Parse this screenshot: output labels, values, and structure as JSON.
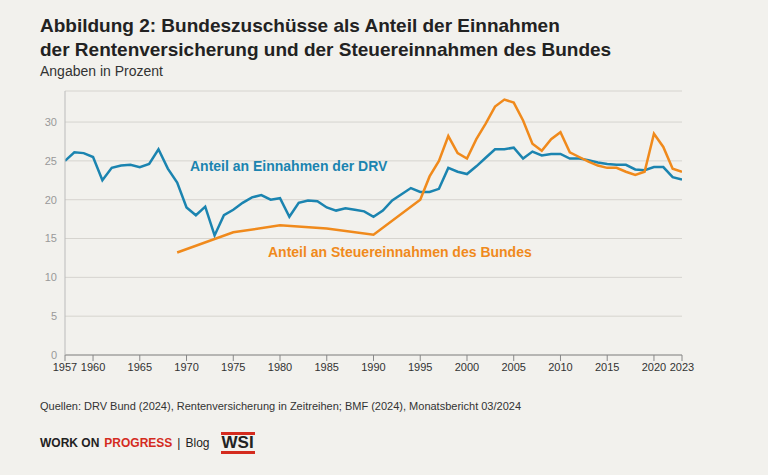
{
  "chart_data": {
    "type": "line",
    "title": [
      "Abbildung 2: Bundeszuschüsse als Anteil der Einnahmen",
      "der Rentenversicherung und der Steuereinnahmen des Bundes"
    ],
    "subtitle": "Angaben in Prozent",
    "x": [
      1957,
      1958,
      1959,
      1960,
      1961,
      1962,
      1963,
      1964,
      1965,
      1966,
      1967,
      1968,
      1969,
      1970,
      1971,
      1972,
      1973,
      1974,
      1975,
      1976,
      1977,
      1978,
      1979,
      1980,
      1981,
      1982,
      1983,
      1984,
      1985,
      1986,
      1987,
      1988,
      1989,
      1990,
      1991,
      1992,
      1993,
      1994,
      1995,
      1996,
      1997,
      1998,
      1999,
      2000,
      2001,
      2002,
      2003,
      2004,
      2005,
      2006,
      2007,
      2008,
      2009,
      2010,
      2011,
      2012,
      2013,
      2014,
      2015,
      2016,
      2017,
      2018,
      2019,
      2020,
      2021,
      2022,
      2023
    ],
    "series": [
      {
        "name": "Anteil an Einnahmen der DRV",
        "color": "#1b84b0",
        "values": [
          25,
          26.1,
          26,
          25.5,
          22.5,
          24.1,
          24.4,
          24.5,
          24.2,
          24.6,
          26.5,
          24,
          22.2,
          19,
          18,
          19.1,
          15.4,
          18,
          18.7,
          19.6,
          20.3,
          20.6,
          20,
          20.2,
          17.8,
          19.6,
          19.9,
          19.8,
          19,
          18.6,
          18.9,
          18.7,
          18.5,
          17.8,
          18.6,
          19.9,
          20.7,
          21.5,
          21,
          21,
          21.4,
          24.1,
          23.6,
          23.3,
          24.3,
          25.4,
          26.5,
          26.5,
          26.7,
          25.3,
          26.2,
          25.7,
          25.9,
          25.9,
          25.3,
          25.3,
          25.1,
          24.8,
          24.6,
          24.5,
          24.5,
          23.9,
          23.8,
          24.2,
          24.2,
          22.9,
          22.6
        ]
      },
      {
        "name": "Anteil an Steuereinnahmen des Bundes",
        "color": "#f08a1c",
        "x": [
          1969,
          1975,
          1980,
          1985,
          1990,
          1995,
          1996,
          1997,
          1998,
          1999,
          2000,
          2001,
          2002,
          2003,
          2004,
          2005,
          2006,
          2007,
          2008,
          2009,
          2010,
          2011,
          2012,
          2013,
          2014,
          2015,
          2016,
          2017,
          2018,
          2019,
          2020,
          2021,
          2022,
          2023
        ],
        "values": [
          13.2,
          15.8,
          16.7,
          16.3,
          15.5,
          20,
          23,
          25,
          28.2,
          26,
          25.3,
          27.8,
          29.8,
          32,
          32.9,
          32.5,
          30.2,
          27.2,
          26.3,
          27.8,
          28.7,
          26.1,
          25.5,
          24.9,
          24.4,
          24.1,
          24.1,
          23.6,
          23.2,
          23.6,
          28.5,
          26.8,
          24,
          23.6
        ]
      }
    ],
    "xlim": [
      1957,
      2023
    ],
    "xticks": [
      1957,
      1960,
      1965,
      1970,
      1975,
      1980,
      1985,
      1990,
      1995,
      2000,
      2005,
      2010,
      2015,
      2020,
      2023
    ],
    "ylim": [
      0,
      34
    ],
    "yticks": [
      0,
      5,
      10,
      15,
      20,
      25,
      30
    ],
    "grid": true,
    "source": "Quellen: DRV Bund (2024), Rentenversicherung in Zeitreihen; BMF (2024), Monatsbericht 03/2024",
    "footer": {
      "parts": [
        "WORK ON",
        "PROGRESS",
        "|",
        "Blog"
      ],
      "logo": "WSI"
    }
  }
}
